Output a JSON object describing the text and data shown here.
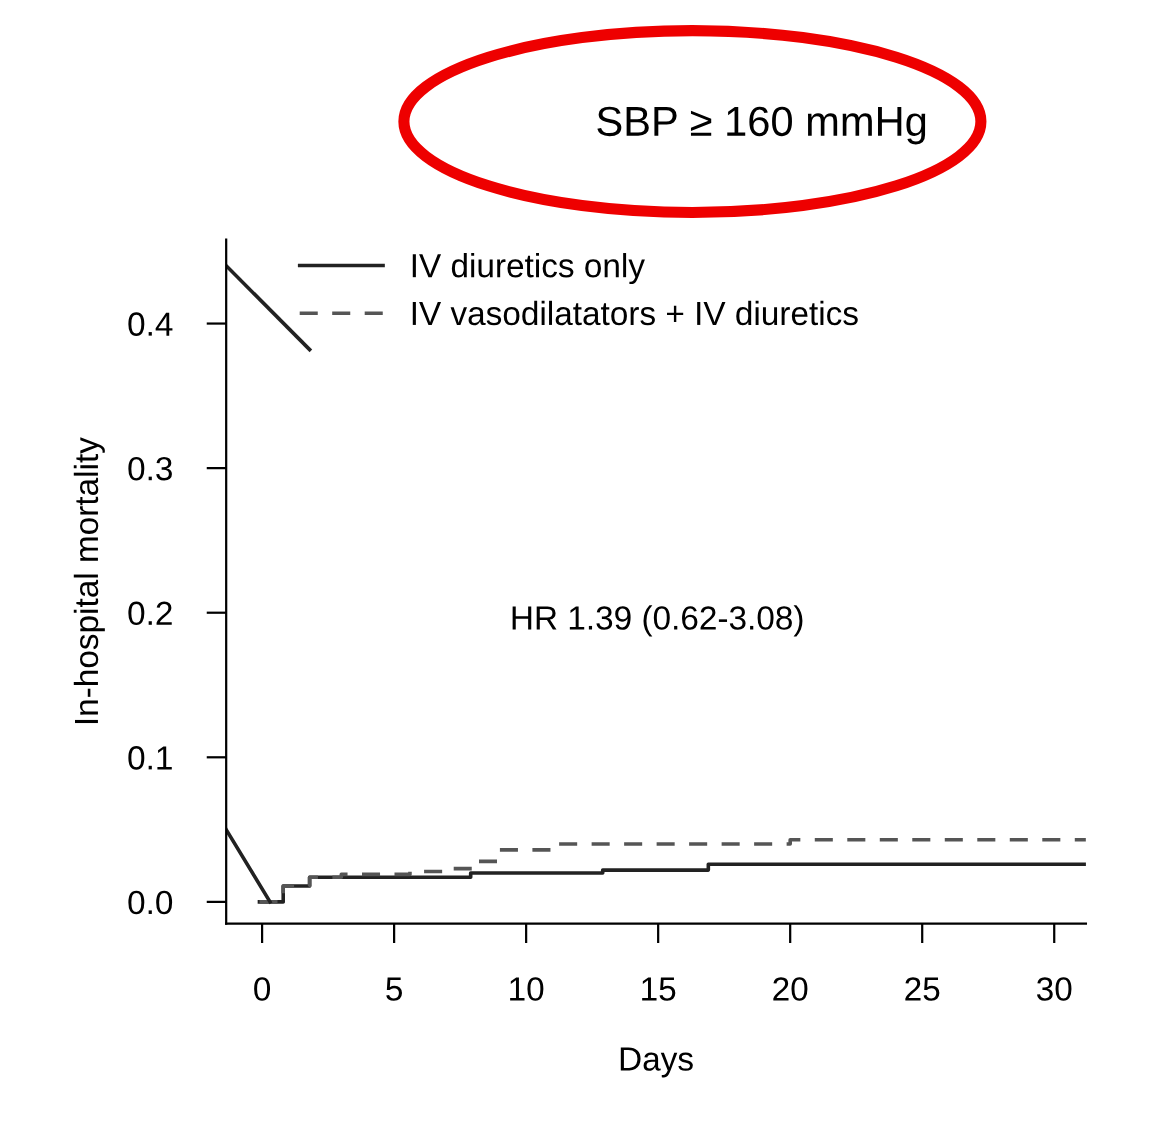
{
  "chart_data": {
    "type": "step",
    "title": "SBP ≥ 160 mmHg",
    "xlabel": "Days",
    "ylabel": "In-hospital mortality",
    "annotations": [
      "HR 1.39 (0.62-3.08)"
    ],
    "series": [
      {
        "name": "IV diuretics only",
        "color": "#222222",
        "line_style": "solid",
        "x": [
          -0.1,
          0.8,
          1.8,
          7.9,
          12.9,
          16.9,
          31.2
        ],
        "values": [
          0,
          0.011,
          0.017,
          0.02,
          0.022,
          0.026,
          0.026
        ]
      },
      {
        "name": "IV vasodilatators + IV diuretics",
        "color": "#555555",
        "line_style": "dashed",
        "x": [
          -0.1,
          0.8,
          1.8,
          3.0,
          5.6,
          6.9,
          8.0,
          8.9,
          11.0,
          20.0,
          31.2
        ],
        "values": [
          0,
          0.011,
          0.017,
          0.019,
          0.021,
          0.023,
          0.028,
          0.036,
          0.04,
          0.043,
          0.043
        ]
      },
      {
        "type": "line",
        "color": "#222222",
        "line_style": "solid",
        "x": [
          -1.36,
          1.8
        ],
        "values": [
          0.44,
          0.382
        ]
      },
      {
        "type": "line",
        "color": "#222222",
        "line_style": "solid",
        "x": [
          -1.36,
          0.3
        ],
        "values": [
          0.05,
          0
        ]
      }
    ],
    "xlim": [
      -1.36,
      31.2
    ],
    "xticks": [
      0,
      5,
      10,
      15,
      20,
      25,
      30
    ],
    "ylim": [
      -0.015,
      0.458
    ],
    "yticks": [
      {
        "value": 0,
        "label": "0.0"
      },
      0.1,
      0.2,
      0.3,
      0.4
    ],
    "grid": false,
    "legend": "top left",
    "marker": "none"
  }
}
